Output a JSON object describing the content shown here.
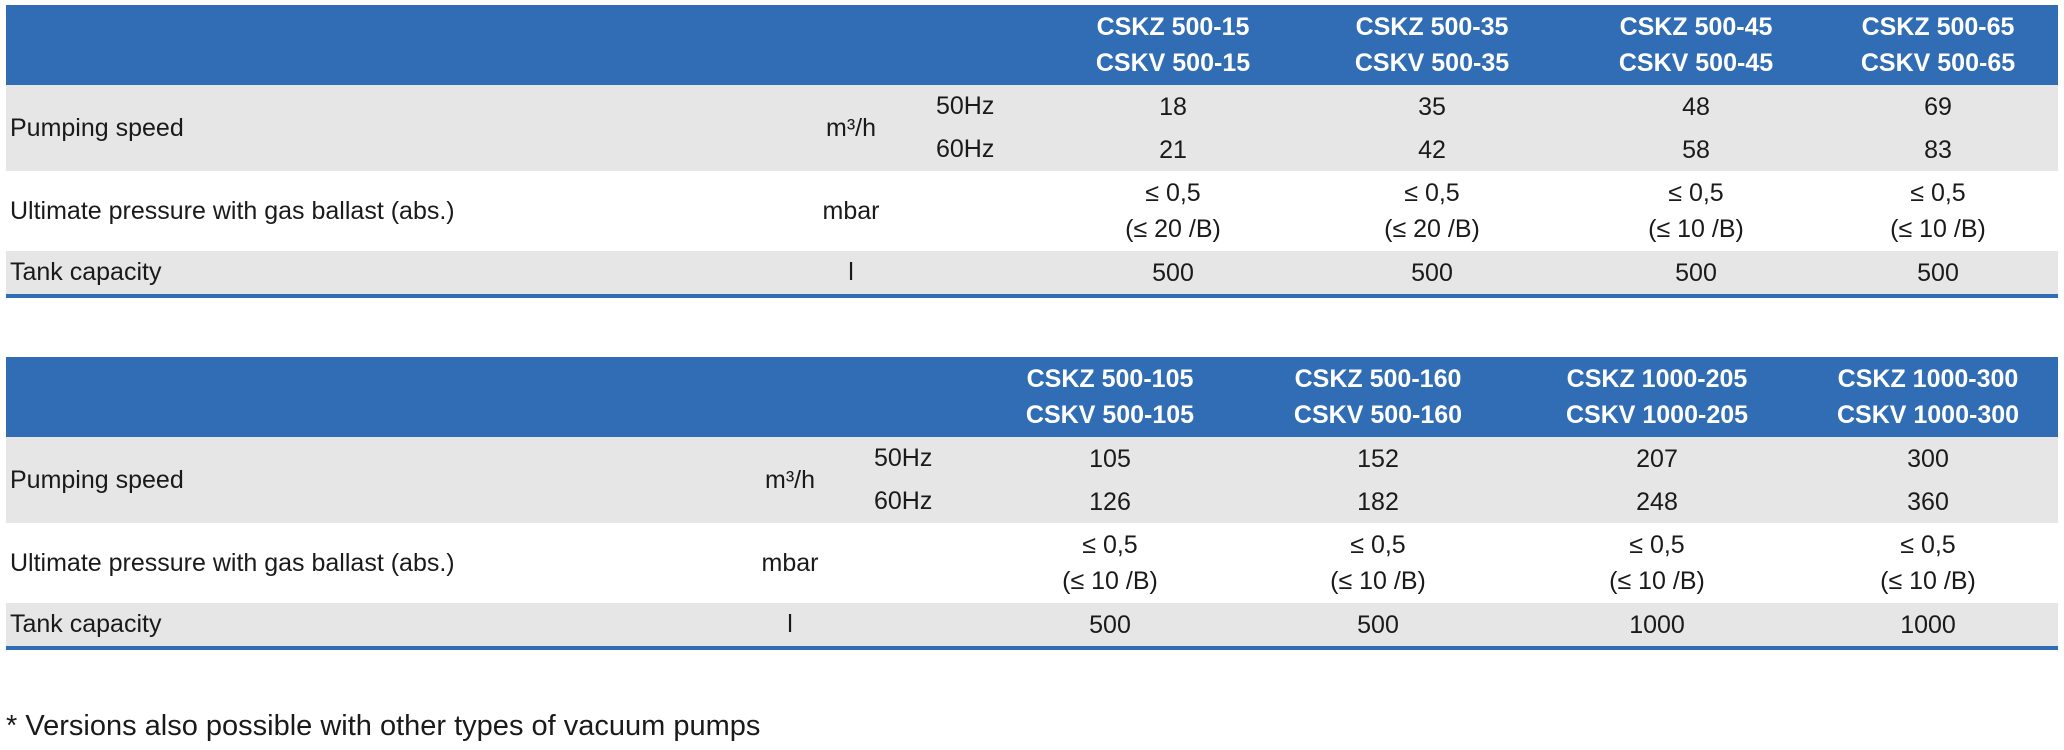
{
  "table1": {
    "models": [
      {
        "line1": "CSKZ 500-15",
        "line2": "CSKV 500-15"
      },
      {
        "line1": "CSKZ 500-35",
        "line2": "CSKV 500-35"
      },
      {
        "line1": "CSKZ 500-45",
        "line2": "CSKV 500-45"
      },
      {
        "line1": "CSKZ 500-65",
        "line2": "CSKV 500-65"
      }
    ],
    "pumping_speed": {
      "label": "Pumping speed",
      "unit": "m³/h",
      "hz50": "50Hz",
      "hz60": "60Hz",
      "values_50": [
        "18",
        "35",
        "48",
        "69"
      ],
      "values_60": [
        "21",
        "42",
        "58",
        "83"
      ]
    },
    "ultimate_pressure": {
      "label": "Ultimate pressure with gas ballast (abs.)",
      "unit": "mbar",
      "values": [
        {
          "line1": "≤ 0,5",
          "line2": "(≤ 20 /B)"
        },
        {
          "line1": "≤ 0,5",
          "line2": "(≤ 20 /B)"
        },
        {
          "line1": "≤ 0,5",
          "line2": "(≤ 10 /B)"
        },
        {
          "line1": "≤ 0,5",
          "line2": "(≤ 10 /B)"
        }
      ]
    },
    "tank_capacity": {
      "label": "Tank capacity",
      "unit": "l",
      "values": [
        "500",
        "500",
        "500",
        "500"
      ]
    }
  },
  "table2": {
    "models": [
      {
        "line1": "CSKZ 500-105",
        "line2": "CSKV 500-105"
      },
      {
        "line1": "CSKZ 500-160",
        "line2": "CSKV 500-160"
      },
      {
        "line1": "CSKZ 1000-205",
        "line2": "CSKV 1000-205"
      },
      {
        "line1": "CSKZ 1000-300",
        "line2": "CSKV 1000-300"
      }
    ],
    "pumping_speed": {
      "label": "Pumping speed",
      "unit": "m³/h",
      "hz50": "50Hz",
      "hz60": "60Hz",
      "values_50": [
        "105",
        "152",
        "207",
        "300"
      ],
      "values_60": [
        "126",
        "182",
        "248",
        "360"
      ]
    },
    "ultimate_pressure": {
      "label": "Ultimate pressure with gas ballast (abs.)",
      "unit": "mbar",
      "values": [
        {
          "line1": "≤ 0,5",
          "line2": "(≤ 10 /B)"
        },
        {
          "line1": "≤ 0,5",
          "line2": "(≤ 10 /B)"
        },
        {
          "line1": "≤ 0,5",
          "line2": "(≤ 10 /B)"
        },
        {
          "line1": "≤ 0,5",
          "line2": "(≤ 10 /B)"
        }
      ]
    },
    "tank_capacity": {
      "label": "Tank capacity",
      "unit": "l",
      "values": [
        "500",
        "500",
        "1000",
        "1000"
      ]
    }
  },
  "footnote": "* Versions also possible with other types of vacuum pumps",
  "colors": {
    "header_blue": "#316db4",
    "row_gray": "#e6e6e6",
    "header_text": "#ffffff",
    "body_text": "#1a1a1a"
  }
}
